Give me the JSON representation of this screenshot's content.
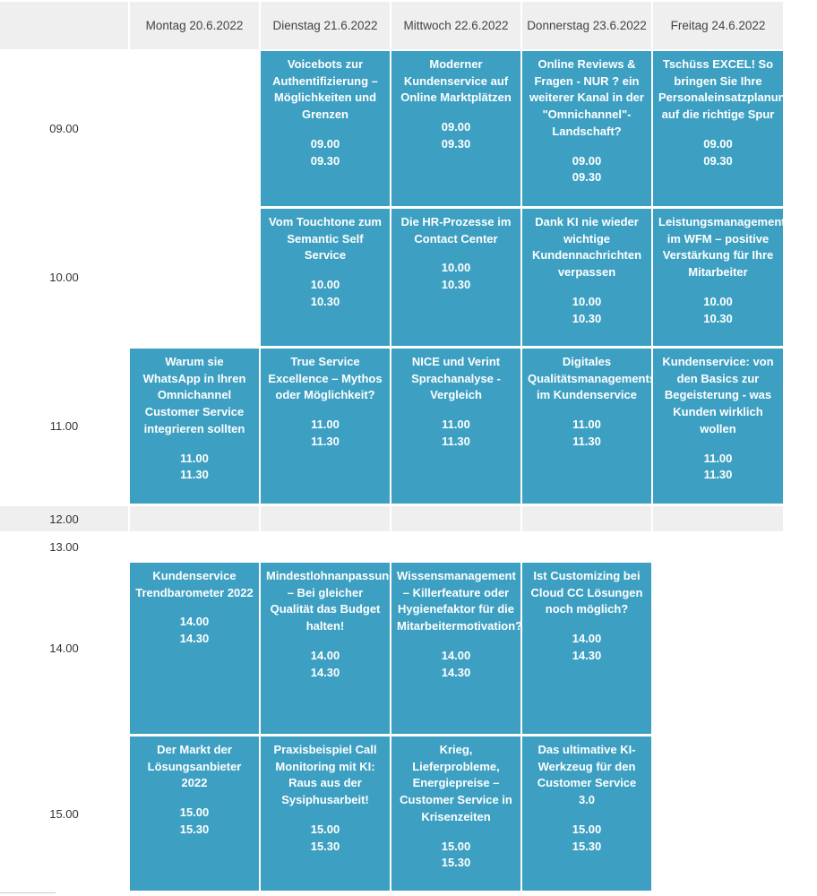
{
  "days": [
    {
      "label": "Montag 20.6.2022"
    },
    {
      "label": "Dienstag 21.6.2022"
    },
    {
      "label": "Mittwoch 22.6.2022"
    },
    {
      "label": "Donnerstag 23.6.2022"
    },
    {
      "label": "Freitag 24.6.2022"
    }
  ],
  "times": [
    "09.00",
    "10.00",
    "11.00",
    "12.00",
    "13.00",
    "14.00",
    "15.00"
  ],
  "sessions": {
    "r0": [
      null,
      {
        "title": "Voicebots zur Authentifizierung – Möglichkeiten und Grenzen",
        "start": "09.00",
        "end": "09.30"
      },
      {
        "title": "Moderner Kundenservice auf Online Marktplätzen",
        "start": "09.00",
        "end": "09.30"
      },
      {
        "title": "Online Reviews & Fragen - NUR ? ein weiterer Kanal in der \"Omnichannel\"-Landschaft?",
        "start": "09.00",
        "end": "09.30"
      },
      {
        "title": "Tschüss EXCEL! So bringen Sie Ihre Personaleinsatzplanung auf die richtige Spur",
        "start": "09.00",
        "end": "09.30"
      }
    ],
    "r1": [
      null,
      {
        "title": "Vom Touchtone zum Semantic Self Service",
        "start": "10.00",
        "end": "10.30"
      },
      {
        "title": "Die HR-Prozesse im Contact Center",
        "start": "10.00",
        "end": "10.30"
      },
      {
        "title": "Dank KI nie wieder wichtige Kundennachrichten verpassen",
        "start": "10.00",
        "end": "10.30"
      },
      {
        "title": "Leistungsmanagement im WFM – positive Verstärkung für Ihre Mitarbeiter",
        "start": "10.00",
        "end": "10.30"
      }
    ],
    "r2": [
      {
        "title": "Warum sie WhatsApp in Ihren Omnichannel Customer Service integrieren sollten",
        "start": "11.00",
        "end": "11.30"
      },
      {
        "title": "True Service Excellence – Mythos oder Möglichkeit?",
        "start": "11.00",
        "end": "11.30"
      },
      {
        "title": "NICE und Verint Sprachanalyse - Vergleich",
        "start": "11.00",
        "end": "11.30"
      },
      {
        "title": "Digitales Qualitätsmanagements im Kundenservice",
        "start": "11.00",
        "end": "11.30"
      },
      {
        "title": "Kundenservice: von den Basics zur Begeisterung - was Kunden wirklich wollen",
        "start": "11.00",
        "end": "11.30"
      }
    ],
    "r5": [
      {
        "title": "Kundenservice Trendbarometer 2022",
        "start": "14.00",
        "end": "14.30"
      },
      {
        "title": "Mindestlohnanpassung – Bei gleicher Qualität das Budget halten!",
        "start": "14.00",
        "end": "14.30"
      },
      {
        "title": "Wissensmanagement – Killerfeature oder Hygienefaktor für die Mitarbeitermotivation?",
        "start": "14.00",
        "end": "14.30"
      },
      {
        "title": "Ist Customizing bei Cloud CC Lösungen noch möglich?",
        "start": "14.00",
        "end": "14.30"
      },
      null
    ],
    "r6": [
      {
        "title": "Der Markt der Lösungsanbieter 2022",
        "start": "15.00",
        "end": "15.30"
      },
      {
        "title": "Praxisbeispiel Call Monitoring mit KI: Raus aus der Sysiphusarbeit!",
        "start": "15.00",
        "end": "15.30"
      },
      {
        "title": "Krieg, Lieferprobleme, Energiepreise – Customer Service in Krisenzeiten",
        "start": "15.00",
        "end": "15.30"
      },
      {
        "title": "Das ultimative KI-Werkzeug für den Customer Service 3.0",
        "start": "15.00",
        "end": "15.30"
      },
      null
    ]
  }
}
